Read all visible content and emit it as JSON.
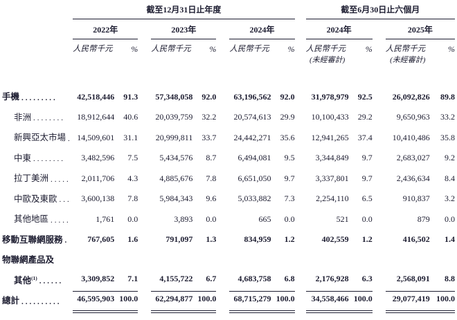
{
  "page": {
    "background": "#ffffff",
    "ink_color": "#1c1c30"
  },
  "header": {
    "group1_title": "截至12月31日止年度",
    "group2_title": "截至6月30日止六個月",
    "year_2022": "2022年",
    "year_2023": "2023年",
    "year_2024": "2024年",
    "year_2024_interim": "2024年",
    "year_2025": "2025年",
    "unit": "人民幣千元",
    "pct": "%",
    "unaudited": "(未經審計)"
  },
  "table": {
    "rows": [
      {
        "label": "手機",
        "dots": ".........",
        "sup": "",
        "bold": true,
        "indent": false,
        "rule": "none",
        "values": [
          "42,518,446",
          "91.3",
          "57,348,058",
          "92.0",
          "63,196,562",
          "92.0",
          "31,978,979",
          "92.5",
          "26,092,826",
          "89.8"
        ]
      },
      {
        "label": "非洲",
        "dots": "........",
        "sup": "",
        "bold": false,
        "indent": true,
        "rule": "none",
        "values": [
          "18,912,644",
          "40.6",
          "20,039,759",
          "32.2",
          "20,574,613",
          "29.9",
          "10,100,433",
          "29.2",
          "9,650,963",
          "33.2"
        ]
      },
      {
        "label": "新興亞太市場",
        "dots": ".",
        "sup": "",
        "bold": false,
        "indent": true,
        "rule": "none",
        "values": [
          "14,509,601",
          "31.1",
          "20,999,811",
          "33.7",
          "24,442,271",
          "35.6",
          "12,941,265",
          "37.4",
          "10,410,486",
          "35.8"
        ]
      },
      {
        "label": "中東",
        "dots": "........",
        "sup": "",
        "bold": false,
        "indent": true,
        "rule": "none",
        "values": [
          "3,482,596",
          "7.5",
          "5,434,576",
          "8.7",
          "6,494,081",
          "9.5",
          "3,344,849",
          "9.7",
          "2,683,027",
          "9.2"
        ]
      },
      {
        "label": "拉丁美洲",
        "dots": ".....",
        "sup": "",
        "bold": false,
        "indent": true,
        "rule": "none",
        "values": [
          "2,011,706",
          "4.3",
          "4,885,676",
          "7.8",
          "6,651,050",
          "9.7",
          "3,337,801",
          "9.7",
          "2,436,634",
          "8.4"
        ]
      },
      {
        "label": "中歐及東歐",
        "dots": "...",
        "sup": "",
        "bold": false,
        "indent": true,
        "rule": "none",
        "values": [
          "3,600,138",
          "7.8",
          "5,984,343",
          "9.6",
          "5,033,882",
          "7.3",
          "2,254,110",
          "6.5",
          "910,837",
          "3.2"
        ]
      },
      {
        "label": "其他地區",
        "dots": ".....",
        "sup": "",
        "bold": false,
        "indent": true,
        "rule": "none",
        "values": [
          "1,761",
          "0.0",
          "3,893",
          "0.0",
          "665",
          "0.0",
          "521",
          "0.0",
          "879",
          "0.0"
        ]
      },
      {
        "label": "移動互聯網服務",
        "dots": ".",
        "sup": "",
        "bold": true,
        "indent": false,
        "rule": "none",
        "values": [
          "767,605",
          "1.6",
          "791,097",
          "1.3",
          "834,959",
          "1.2",
          "402,559",
          "1.2",
          "416,502",
          "1.4"
        ]
      },
      {
        "label": "物聯網產品及",
        "dots": "",
        "sup": "",
        "bold": true,
        "indent": false,
        "rule": "none",
        "values": [
          "",
          "",
          "",
          "",
          "",
          "",
          "",
          "",
          "",
          ""
        ]
      },
      {
        "label": "其他",
        "dots": "......",
        "sup": "(1)",
        "bold": true,
        "indent": true,
        "rule": "single",
        "values": [
          "3,309,852",
          "7.1",
          "4,155,722",
          "6.7",
          "4,683,758",
          "6.8",
          "2,176,928",
          "6.3",
          "2,568,091",
          "8.8"
        ]
      },
      {
        "label": "總計",
        "dots": "..........",
        "sup": "",
        "bold": true,
        "indent": false,
        "rule": "double",
        "values": [
          "46,595,903",
          "100.0",
          "62,294,877",
          "100.0",
          "68,715,279",
          "100.0",
          "34,558,466",
          "100.0",
          "29,077,419",
          "100.0"
        ]
      }
    ]
  }
}
